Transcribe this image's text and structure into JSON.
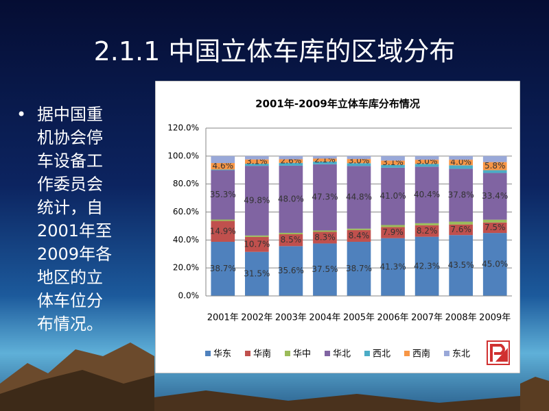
{
  "title": "2.1.1 中国立体车库的区域分布",
  "bullet": {
    "marker": "•",
    "lines": [
      "据中国重",
      "机协会停",
      "车设备工",
      "作委员会",
      "统计，自",
      "2001年至",
      "2009年各",
      "地区的立",
      "体车位分",
      "布情况。"
    ]
  },
  "chart_data": {
    "type": "stacked-bar",
    "title": "2001年-2009年立体车库分布情况",
    "categories": [
      "2001年",
      "2002年",
      "2003年",
      "2004年",
      "2005年",
      "2006年",
      "2007年",
      "2008年",
      "2009年"
    ],
    "ylim": [
      0,
      120
    ],
    "yticks": [
      {
        "value": 0,
        "label": "0.0%"
      },
      {
        "value": 20,
        "label": "20.0%"
      },
      {
        "value": 40,
        "label": "40.0%"
      },
      {
        "value": 60,
        "label": "60.0%"
      },
      {
        "value": 80,
        "label": "80.0%"
      },
      {
        "value": 100,
        "label": "100.0%"
      },
      {
        "value": 120,
        "label": "120.0%"
      }
    ],
    "grid": true,
    "legend": "bottom",
    "series": [
      {
        "name": "华东",
        "color": "#4f81bd",
        "values": [
          38.7,
          31.5,
          35.6,
          37.5,
          38.7,
          41.3,
          42.3,
          43.5,
          45.0
        ],
        "value_labels": [
          "38.7%",
          "31.5%",
          "35.6%",
          "37.5%",
          "38.7%",
          "41.3%",
          "42.3%",
          "43.5%",
          "45.0%"
        ]
      },
      {
        "name": "华南",
        "color": "#c0504d",
        "values": [
          14.9,
          10.7,
          8.5,
          8.3,
          8.4,
          7.9,
          8.2,
          7.6,
          7.5
        ],
        "value_labels": [
          "14.9%",
          "10.7%",
          "8.5%",
          "8.3%",
          "8.4%",
          "7.9%",
          "8.2%",
          "7.6%",
          "7.5%"
        ]
      },
      {
        "name": "华中",
        "color": "#9bbb59",
        "values": [
          1.0,
          1.0,
          1.0,
          1.0,
          1.0,
          1.5,
          1.5,
          2.0,
          2.0
        ]
      },
      {
        "name": "华北",
        "color": "#8064a2",
        "values": [
          35.3,
          49.8,
          48.0,
          47.3,
          44.8,
          41.0,
          40.4,
          37.8,
          33.4
        ],
        "value_labels": [
          "35.3%",
          "49.8%",
          "48.0%",
          "47.3%",
          "44.8%",
          "41.0%",
          "40.4%",
          "37.8%",
          "33.4%"
        ]
      },
      {
        "name": "西北",
        "color": "#4bacc6",
        "values": [
          0.5,
          1.5,
          2.0,
          2.0,
          2.0,
          2.0,
          2.0,
          2.5,
          2.0
        ]
      },
      {
        "name": "西南",
        "color": "#f79646",
        "values": [
          4.6,
          3.1,
          2.6,
          2.1,
          3.0,
          3.1,
          3.0,
          4.0,
          5.8
        ],
        "value_labels": [
          "4.6%",
          "3.1%",
          "2.6%",
          "2.1%",
          "3.0%",
          "3.1%",
          "3.0%",
          "4.0%",
          "5.8%"
        ]
      },
      {
        "name": "东北",
        "color": "#99a8d8",
        "values": [
          5.0,
          2.4,
          2.3,
          1.8,
          2.1,
          3.2,
          2.6,
          2.6,
          4.3
        ]
      }
    ]
  }
}
